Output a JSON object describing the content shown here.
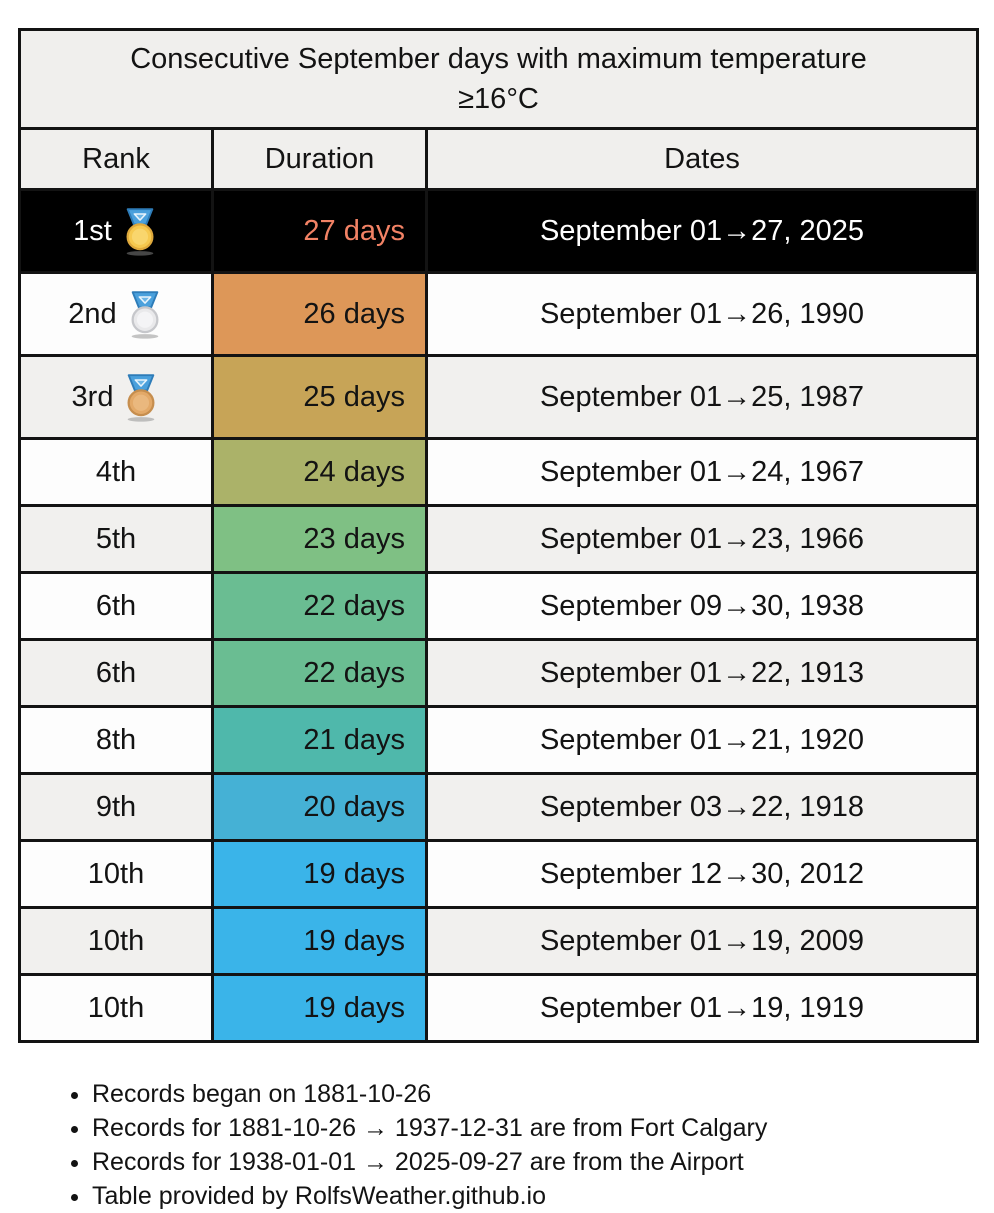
{
  "chart_data": {
    "type": "table",
    "title": "Consecutive September days with maximum temperature ≥16°C",
    "title_lines": [
      "Consecutive September days with maximum temperature",
      "≥16°C"
    ],
    "columns": [
      "Rank",
      "Duration",
      "Dates"
    ],
    "rows": [
      {
        "rank": "1st",
        "medal": "gold",
        "duration": "27 days",
        "duration_days": 27,
        "dates": "September 01→27, 2025",
        "highlight": true,
        "duration_bg": "#000000",
        "duration_color": "#f28265"
      },
      {
        "rank": "2nd",
        "medal": "silver",
        "duration": "26 days",
        "duration_days": 26,
        "dates": "September 01→26, 1990",
        "highlight": false,
        "duration_bg": "#dd9758",
        "duration_color": "#131313"
      },
      {
        "rank": "3rd",
        "medal": "bronze",
        "duration": "25 days",
        "duration_days": 25,
        "dates": "September 01→25, 1987",
        "highlight": false,
        "duration_bg": "#c7a457",
        "duration_color": "#131313"
      },
      {
        "rank": "4th",
        "medal": null,
        "duration": "24 days",
        "duration_days": 24,
        "dates": "September 01→24, 1967",
        "highlight": false,
        "duration_bg": "#abb269",
        "duration_color": "#131313"
      },
      {
        "rank": "5th",
        "medal": null,
        "duration": "23 days",
        "duration_days": 23,
        "dates": "September 01→23, 1966",
        "highlight": false,
        "duration_bg": "#7fc084",
        "duration_color": "#131313"
      },
      {
        "rank": "6th",
        "medal": null,
        "duration": "22 days",
        "duration_days": 22,
        "dates": "September 09→30, 1938",
        "highlight": false,
        "duration_bg": "#6abd92",
        "duration_color": "#131313"
      },
      {
        "rank": "6th",
        "medal": null,
        "duration": "22 days",
        "duration_days": 22,
        "dates": "September 01→22, 1913",
        "highlight": false,
        "duration_bg": "#6abd92",
        "duration_color": "#131313"
      },
      {
        "rank": "8th",
        "medal": null,
        "duration": "21 days",
        "duration_days": 21,
        "dates": "September 01→21, 1920",
        "highlight": false,
        "duration_bg": "#4fb8ab",
        "duration_color": "#131313"
      },
      {
        "rank": "9th",
        "medal": null,
        "duration": "20 days",
        "duration_days": 20,
        "dates": "September 03→22, 1918",
        "highlight": false,
        "duration_bg": "#45b1d5",
        "duration_color": "#131313"
      },
      {
        "rank": "10th",
        "medal": null,
        "duration": "19 days",
        "duration_days": 19,
        "dates": "September 12→30, 2012",
        "highlight": false,
        "duration_bg": "#3ab4e9",
        "duration_color": "#131313"
      },
      {
        "rank": "10th",
        "medal": null,
        "duration": "19 days",
        "duration_days": 19,
        "dates": "September 01→19, 2009",
        "highlight": false,
        "duration_bg": "#3ab4e9",
        "duration_color": "#131313"
      },
      {
        "rank": "10th",
        "medal": null,
        "duration": "19 days",
        "duration_days": 19,
        "dates": "September 01→19, 1919",
        "highlight": false,
        "duration_bg": "#3ab4e9",
        "duration_color": "#131313"
      }
    ],
    "notes": [
      "Records began on 1881-10-26",
      "Records for 1881-10-26 → 1937-12-31 are from Fort Calgary",
      "Records for 1938-01-01 → 2025-09-27 are from the Airport",
      "Table provided by RolfsWeather.github.io"
    ],
    "layout": {
      "grid": "on",
      "legend": "none"
    }
  },
  "colors": {
    "table_border": "#131313",
    "title_bg": "#f0efed",
    "row_alt_bg": "#f1f0ee",
    "row_bg": "#fdfdfd",
    "highlight_row_bg": "#000000",
    "highlight_duration_text": "#f28265",
    "ribbon": "#4aa0dc",
    "ribbon_edge": "#2e7cb8",
    "ribbon_inner": "#6db6e6",
    "ribbon_inner_edge": "#e8f4fc",
    "medals": {
      "gold": {
        "face": "#f6c94f",
        "edge": "#dfa93c",
        "inner": "#f9d66d"
      },
      "silver": {
        "face": "#e9e9eb",
        "edge": "#c6c7cb",
        "inner": "#f4f4f6"
      },
      "bronze": {
        "face": "#e3a968",
        "edge": "#c68e4e",
        "inner": "#eab87e"
      }
    }
  }
}
